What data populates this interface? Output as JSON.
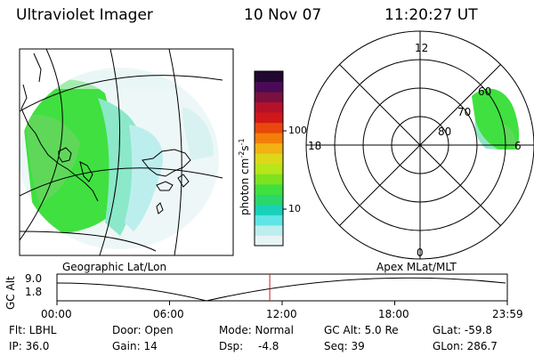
{
  "header": {
    "title": "Ultraviolet Imager",
    "date": "10 Nov 07",
    "time": "11:20:27 UT"
  },
  "colorbar": {
    "label": "photon cm",
    "label_sup1": "-2",
    "label_s": "s",
    "label_sup2": "-1",
    "tick_high": "100",
    "tick_low": "10",
    "colors": [
      "#e8f4f4",
      "#bdeeee",
      "#5fe5e5",
      "#19d1b8",
      "#2ad86a",
      "#40e040",
      "#7ee21f",
      "#b7e61a",
      "#ddd81a",
      "#f2b214",
      "#f37f0a",
      "#e8480a",
      "#d11818",
      "#b5122a",
      "#7a1040",
      "#4a0a55",
      "#20082e"
    ]
  },
  "left_panel": {
    "label": "Geographic Lat/Lon"
  },
  "right_panel": {
    "label": "Apex MLat/MLT",
    "mlt_labels": {
      "top": "12",
      "left": "18",
      "right": "6",
      "bottom": "0"
    },
    "lat_labels": [
      "60",
      "70",
      "80"
    ]
  },
  "altitude_plot": {
    "ylabel": "GC Alt",
    "yticks": [
      "9.0",
      "1.8"
    ],
    "xticks": [
      "00:00",
      "06:00",
      "12:00",
      "18:00",
      "23:59"
    ],
    "current_time_fraction": 0.4725
  },
  "info": {
    "flt": "Flt: LBHL",
    "door": "Door: Open",
    "mode": "Mode: Normal",
    "gc_alt": "GC Alt: 5.0 Re",
    "glat": "GLat: -59.8",
    "ip": "IP: 36.0",
    "gain": "Gain: 14",
    "dsp_label": "Dsp:",
    "dsp_value": "-4.8",
    "seq": "Seq: 39",
    "glon": "GLon: 286.7"
  }
}
